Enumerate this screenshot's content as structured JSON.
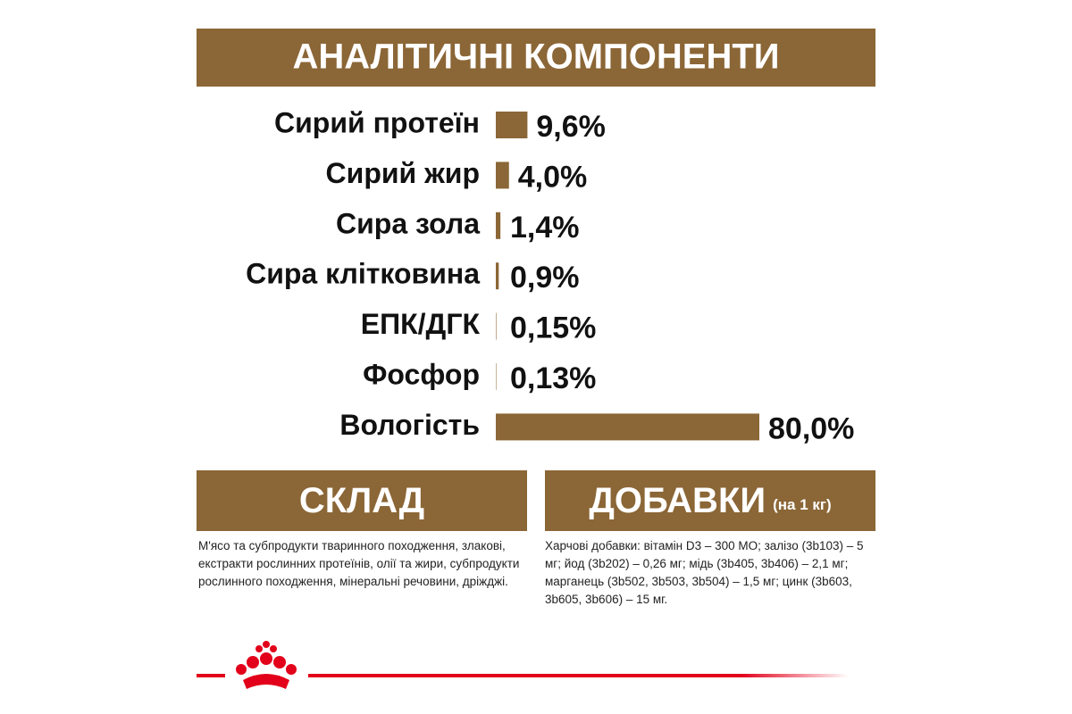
{
  "chart_data": {
    "type": "hbar",
    "title": "АНАЛІТИЧНІ КОМПОНЕНТИ",
    "categories": [
      "Сирий протеїн",
      "Сирий жир",
      "Сира зола",
      "Сира клітковина",
      "ЕПК/ДГК",
      "Фосфор",
      "Вологість"
    ],
    "values": [
      9.6,
      4.0,
      1.4,
      0.9,
      0.15,
      0.13,
      80.0
    ],
    "value_labels": [
      "9,6%",
      "4,0%",
      "1,4%",
      "0,9%",
      "0,15%",
      "0,13%",
      "80,0%"
    ],
    "color": "#8b6636"
  },
  "composition": {
    "title": "СКЛАД",
    "text": "М'ясо та субпродукти тваринного походження, злакові, екстракти рослинних протеїнів, олії та жири, субпродукти рослинного походження, мінеральні речовини, дріжджі."
  },
  "additives": {
    "title": "ДОБАВКИ",
    "unit": "(на 1 кг)",
    "text": "Харчові добавки: вітамін D3 – 300 МО; залізо (3b103) – 5 мг; йод (3b202) – 0,26 мг; мідь (3b405, 3b406) – 2,1 мг; марганець (3b502, 3b503, 3b504) – 1,5 мг; цинк (3b603, 3b605, 3b606) – 15 мг."
  }
}
